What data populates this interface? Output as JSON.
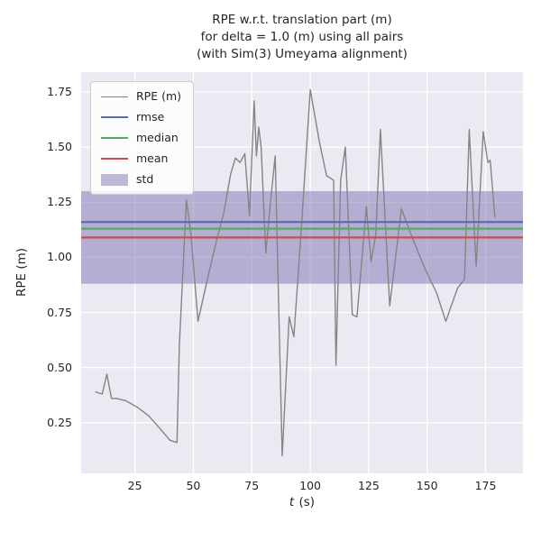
{
  "title_lines": [
    "RPE w.r.t. translation part (m)",
    "for delta = 1.0 (m) using all pairs",
    "(with Sim(3) Umeyama alignment)"
  ],
  "ylabel": "RPE (m)",
  "xlabel": {
    "var": "t",
    "rest": " (s)"
  },
  "colors": {
    "axes_background": "#eaeaf2",
    "grid": "#ffffff",
    "text": "#262626",
    "rpe_line": "#848484",
    "rmse": "#4c72b0",
    "median": "#55a868",
    "mean": "#c44e52",
    "std": "#8172b2"
  },
  "chart_data": {
    "type": "line",
    "title": "RPE w.r.t. translation part (m) for delta = 1.0 (m) using all pairs (with Sim(3) Umeyama alignment)",
    "xlabel": "t (s)",
    "ylabel": "RPE (m)",
    "xlim": [
      2,
      191
    ],
    "ylim": [
      0.02,
      1.84
    ],
    "grid": true,
    "legend_position": "upper-left",
    "xticks": [
      {
        "v": 25,
        "label": "25"
      },
      {
        "v": 50,
        "label": "50"
      },
      {
        "v": 75,
        "label": "75"
      },
      {
        "v": 100,
        "label": "100"
      },
      {
        "v": 125,
        "label": "125"
      },
      {
        "v": 150,
        "label": "150"
      },
      {
        "v": 175,
        "label": "175"
      }
    ],
    "yticks": [
      {
        "v": 0.25,
        "label": "0.25"
      },
      {
        "v": 0.5,
        "label": "0.50"
      },
      {
        "v": 0.75,
        "label": "0.75"
      },
      {
        "v": 1.0,
        "label": "1.00"
      },
      {
        "v": 1.25,
        "label": "1.25"
      },
      {
        "v": 1.5,
        "label": "1.50"
      },
      {
        "v": 1.75,
        "label": "1.75"
      }
    ],
    "series": [
      {
        "name": "RPE (m)",
        "color": "#848484",
        "x": [
          8,
          11,
          13,
          15,
          17,
          21,
          26,
          31,
          36,
          40,
          43,
          44,
          47,
          49,
          52,
          56,
          60,
          63,
          66,
          68,
          70,
          72,
          74,
          76,
          77,
          78,
          79,
          81,
          83,
          85,
          88,
          91,
          93,
          96,
          100,
          104,
          107,
          110,
          111,
          113,
          115,
          118,
          120,
          124,
          126,
          128,
          130,
          134,
          139,
          144,
          149,
          154,
          158,
          163,
          166,
          168,
          171,
          174,
          176,
          177,
          179
        ],
        "y": [
          0.39,
          0.38,
          0.47,
          0.36,
          0.36,
          0.35,
          0.32,
          0.28,
          0.22,
          0.17,
          0.16,
          0.6,
          1.26,
          1.1,
          0.71,
          0.9,
          1.08,
          1.2,
          1.38,
          1.45,
          1.43,
          1.47,
          1.19,
          1.71,
          1.46,
          1.59,
          1.5,
          1.02,
          1.25,
          1.46,
          0.1,
          0.73,
          0.64,
          1.1,
          1.76,
          1.52,
          1.37,
          1.35,
          0.51,
          1.35,
          1.5,
          0.74,
          0.73,
          1.23,
          0.98,
          1.1,
          1.58,
          0.78,
          1.22,
          1.08,
          0.95,
          0.84,
          0.71,
          0.86,
          0.9,
          1.58,
          0.96,
          1.57,
          1.43,
          1.44,
          1.18
        ]
      }
    ],
    "stat_lines": [
      {
        "name": "rmse",
        "value": 1.16,
        "color": "#4c72b0"
      },
      {
        "name": "median",
        "value": 1.13,
        "color": "#55a868"
      },
      {
        "name": "mean",
        "value": 1.09,
        "color": "#c44e52"
      }
    ],
    "std_band": {
      "name": "std",
      "lower": 0.88,
      "upper": 1.3,
      "color": "#8172b2",
      "opacity": 0.5
    }
  }
}
